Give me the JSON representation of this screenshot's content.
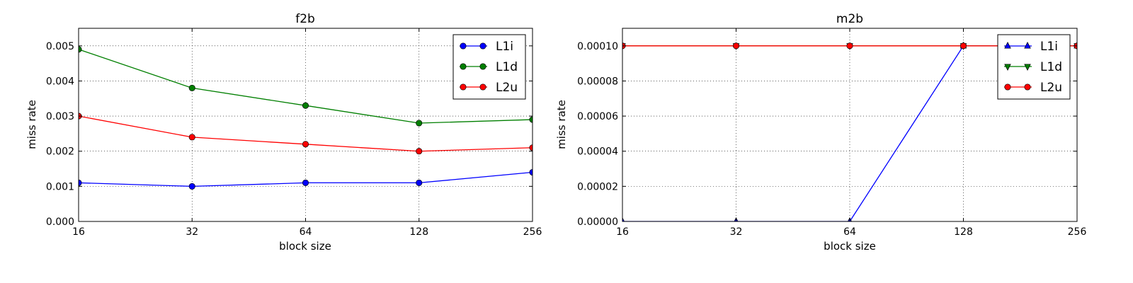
{
  "chart_data": [
    {
      "type": "line",
      "title": "f2b",
      "xlabel": "block size",
      "ylabel": "miss rate",
      "x": [
        16,
        32,
        64,
        128,
        256
      ],
      "xscale": "log2",
      "x_tick_labels": [
        "16",
        "32",
        "64",
        "128",
        "256"
      ],
      "ylim": [
        0,
        0.0055
      ],
      "y_ticks": [
        0,
        0.001,
        0.002,
        0.003,
        0.004,
        0.005
      ],
      "y_tick_labels": [
        "0.000",
        "0.001",
        "0.002",
        "0.003",
        "0.004",
        "0.005"
      ],
      "grid": true,
      "legend_position": "top-right",
      "series": [
        {
          "name": "L1i",
          "values": [
            0.0011,
            0.001,
            0.0011,
            0.0011,
            0.0014
          ],
          "color": "#0000ff",
          "marker": "circle"
        },
        {
          "name": "L1d",
          "values": [
            0.0049,
            0.0038,
            0.0033,
            0.0028,
            0.0029
          ],
          "color": "#007f00",
          "marker": "circle"
        },
        {
          "name": "L2u",
          "values": [
            0.003,
            0.0024,
            0.0022,
            0.002,
            0.0021
          ],
          "color": "#ff0000",
          "marker": "circle"
        }
      ]
    },
    {
      "type": "line",
      "title": "m2b",
      "xlabel": "block size",
      "ylabel": "miss rate",
      "x": [
        16,
        32,
        64,
        128,
        256
      ],
      "xscale": "log2",
      "x_tick_labels": [
        "16",
        "32",
        "64",
        "128",
        "256"
      ],
      "ylim": [
        0,
        0.00011
      ],
      "y_ticks": [
        0,
        2e-05,
        4e-05,
        6e-05,
        8e-05,
        0.0001
      ],
      "y_tick_labels": [
        "0.00000",
        "0.00002",
        "0.00004",
        "0.00006",
        "0.00008",
        "0.00010"
      ],
      "grid": true,
      "legend_position": "top-right",
      "series": [
        {
          "name": "L1i",
          "values": [
            0,
            0,
            0,
            0.0001,
            0.0001
          ],
          "color": "#0000ff",
          "marker": "triangle-up"
        },
        {
          "name": "L1d",
          "values": [
            0.0001,
            0.0001,
            0.0001,
            0.0001,
            0.0001
          ],
          "color": "#007f00",
          "marker": "triangle-down"
        },
        {
          "name": "L2u",
          "values": [
            0.0001,
            0.0001,
            0.0001,
            0.0001,
            0.0001
          ],
          "color": "#ff0000",
          "marker": "circle"
        }
      ]
    }
  ]
}
